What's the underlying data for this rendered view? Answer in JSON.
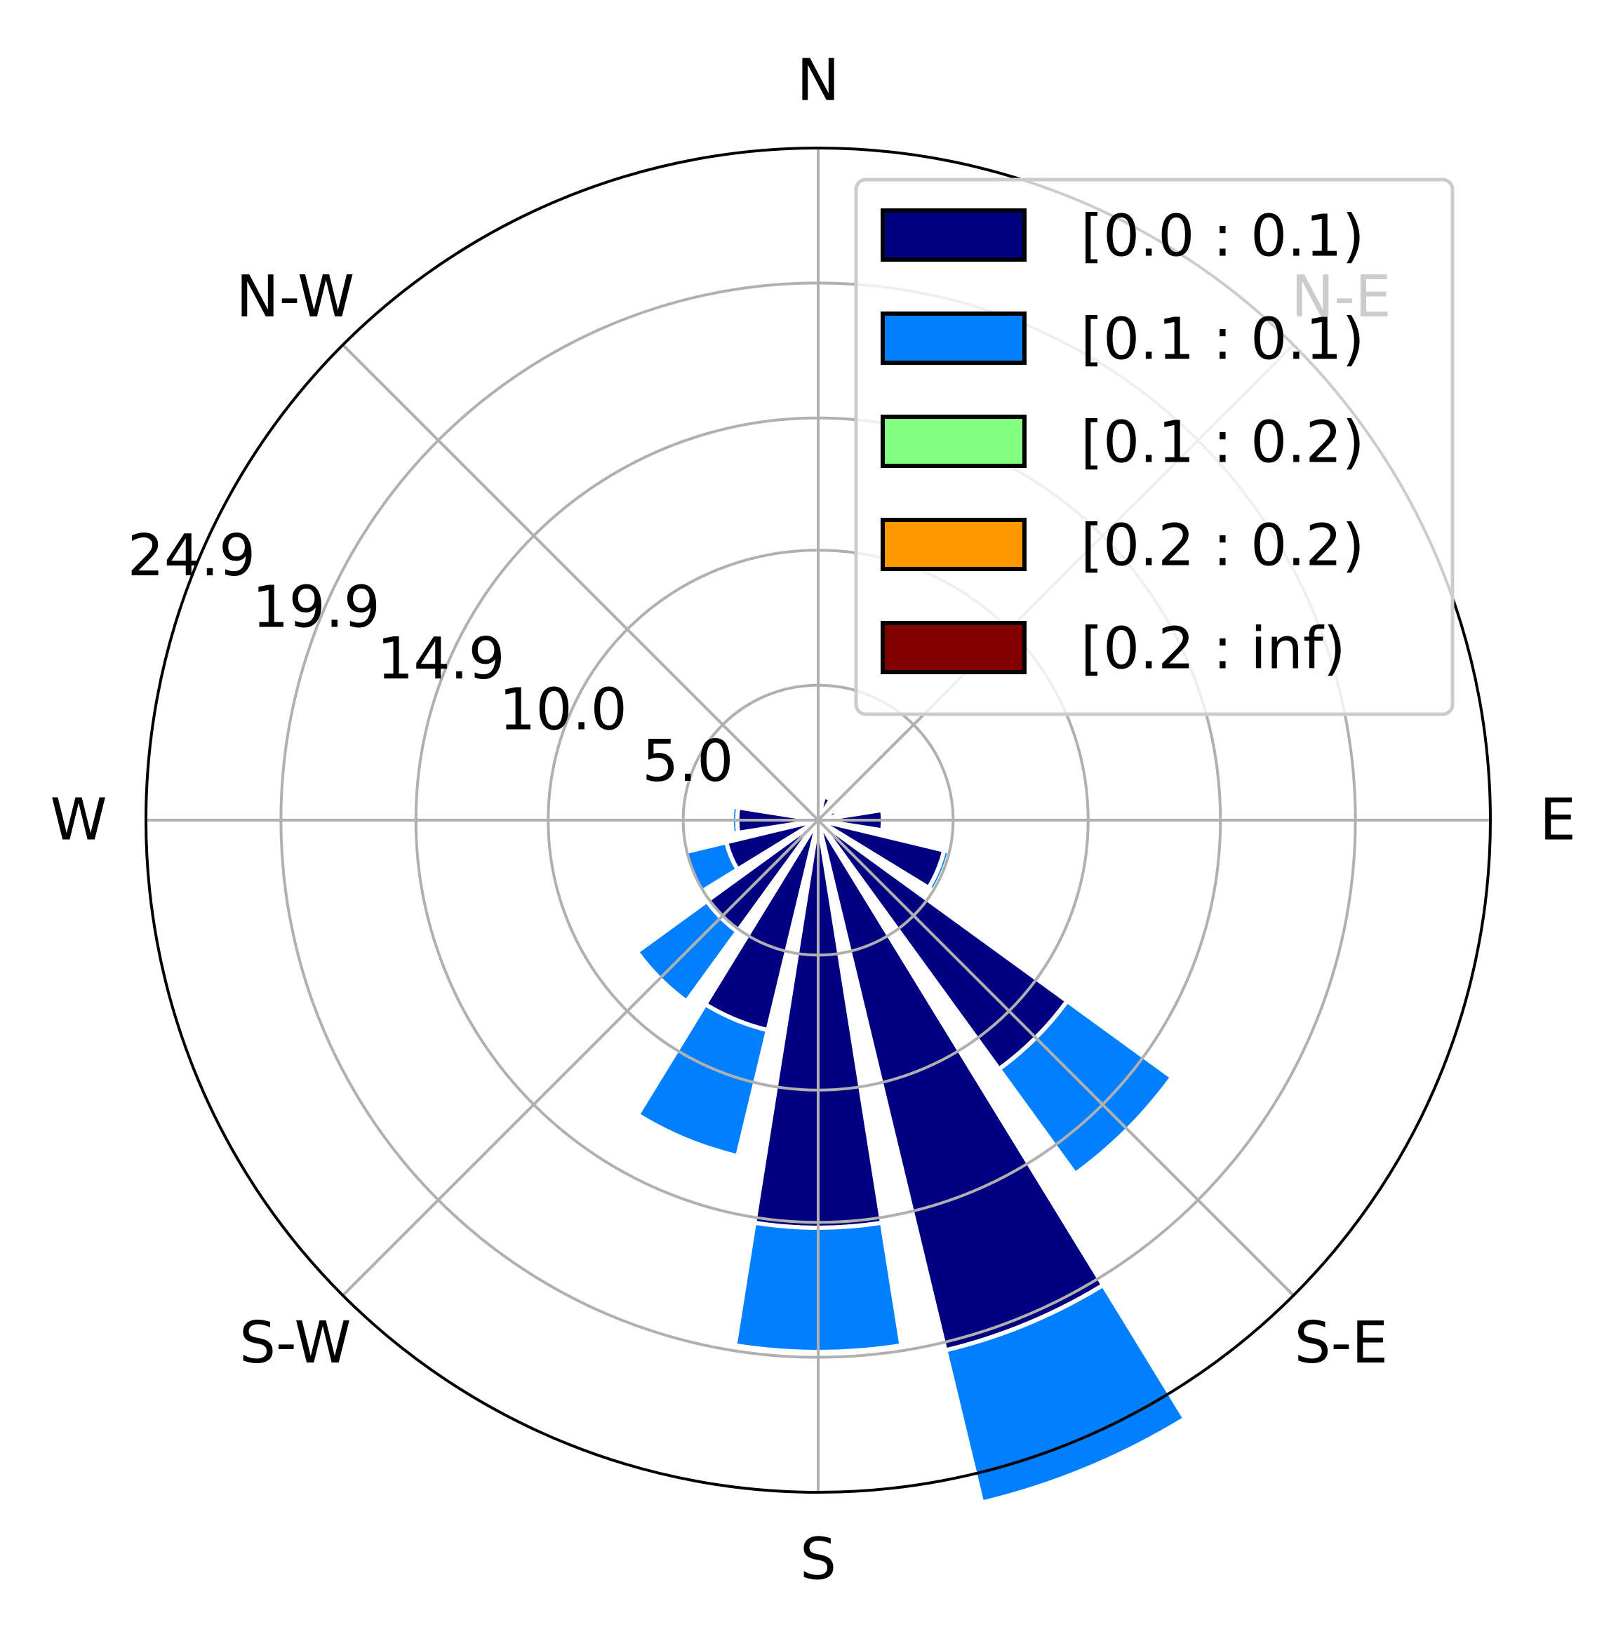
{
  "chart_data": {
    "type": "windrose",
    "directions": [
      "N",
      "N-E",
      "E",
      "S-E",
      "S",
      "S-W",
      "W",
      "N-W"
    ],
    "radial_ticks": [
      "5.0",
      "10.0",
      "14.9",
      "19.9",
      "24.9"
    ],
    "radial_tick_values": [
      5.0,
      10.0,
      14.9,
      19.9,
      24.9
    ],
    "rmax": 24.9,
    "grid": true,
    "legend_position": "top-right",
    "bin_angle_deg": 22.5,
    "sector_angles_deg": [
      0,
      22.5,
      45,
      67.5,
      90,
      112.5,
      135,
      157.5,
      180,
      202.5,
      225,
      247.5,
      270,
      292.5,
      315,
      337.5
    ],
    "series": [
      {
        "name": "[0.0 : 0.1)",
        "color": "#000080",
        "values": [
          0,
          0.9,
          0,
          0.7,
          2.4,
          4.8,
          11.4,
          20.2,
          15.1,
          8.0,
          5.1,
          3.5,
          3.0,
          0,
          0,
          0
        ]
      },
      {
        "name": "[0.1 : 0.1)",
        "color": "#0080ff",
        "values": [
          0,
          0,
          0,
          0,
          0,
          0.2,
          4.8,
          5.8,
          4.6,
          4.8,
          3.2,
          1.6,
          0.2,
          0,
          0,
          0
        ]
      },
      {
        "name": "[0.1 : 0.2)",
        "color": "#80ff80",
        "values": [
          0,
          0,
          0,
          0,
          0,
          0,
          0,
          0,
          0,
          0,
          0.1,
          0,
          0,
          0,
          0,
          0
        ]
      },
      {
        "name": "[0.2 : 0.2)",
        "color": "#ff9900",
        "values": [
          0,
          0,
          0,
          0,
          0,
          0,
          0,
          0,
          0,
          0,
          0,
          0,
          0,
          0,
          0,
          0
        ]
      },
      {
        "name": "[0.2 : inf)",
        "color": "#800000",
        "values": [
          0,
          0,
          0,
          0,
          0,
          0,
          0,
          0,
          0,
          0,
          0,
          0,
          0,
          0,
          0,
          0
        ]
      }
    ]
  }
}
